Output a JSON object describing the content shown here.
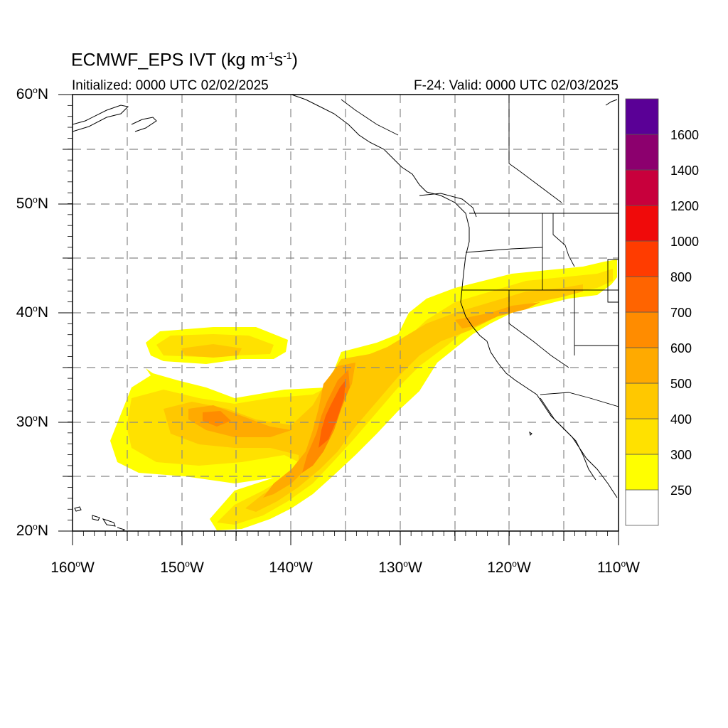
{
  "map": {
    "title_prefix": "ECMWF_EPS IVT (kg m",
    "title_exp1": "-1",
    "title_mid": "s",
    "title_exp2": "-1",
    "title_suffix": ")",
    "initialized": "Initialized: 0000 UTC 02/02/2025",
    "valid": "F-24: Valid: 0000 UTC 02/03/2025",
    "lat_labels": [
      {
        "num": "60",
        "hemi": "N",
        "lat": 60
      },
      {
        "num": "50",
        "hemi": "N",
        "lat": 50
      },
      {
        "num": "40",
        "hemi": "N",
        "lat": 40
      },
      {
        "num": "30",
        "hemi": "N",
        "lat": 30
      },
      {
        "num": "20",
        "hemi": "N",
        "lat": 20
      }
    ],
    "lon_labels": [
      {
        "num": "160",
        "hemi": "W",
        "lon": -160
      },
      {
        "num": "150",
        "hemi": "W",
        "lon": -150
      },
      {
        "num": "140",
        "hemi": "W",
        "lon": -140
      },
      {
        "num": "130",
        "hemi": "W",
        "lon": -130
      },
      {
        "num": "120",
        "hemi": "W",
        "lon": -120
      },
      {
        "num": "110",
        "hemi": "W",
        "lon": -110
      }
    ],
    "extent": {
      "lon_min": -160,
      "lon_max": -110,
      "lat_min": 20,
      "lat_max": 60
    }
  },
  "colorbar": {
    "labels": [
      "250",
      "300",
      "400",
      "500",
      "600",
      "700",
      "800",
      "1000",
      "1200",
      "1400",
      "1600"
    ],
    "colors": [
      "#ffffff",
      "#ffff00",
      "#ffe100",
      "#ffc800",
      "#ffaa00",
      "#ff8c00",
      "#ff6400",
      "#ff3c00",
      "#f00a0a",
      "#c8003c",
      "#8c006e",
      "#5a0096"
    ]
  },
  "ivt_shading": {
    "features": [
      {
        "level": "250-300",
        "color": "#ffff00",
        "description_lons": [
          -158,
          -110
        ],
        "description_lats": [
          20,
          45
        ]
      },
      {
        "level": "300-400",
        "color": "#ffe100"
      },
      {
        "level": "400-500",
        "color": "#ffc800"
      },
      {
        "level": "500-600",
        "color": "#ffaa00"
      },
      {
        "level": "600-700",
        "color": "#ff8c00"
      },
      {
        "level": "700-800",
        "color": "#ff6400"
      }
    ]
  }
}
